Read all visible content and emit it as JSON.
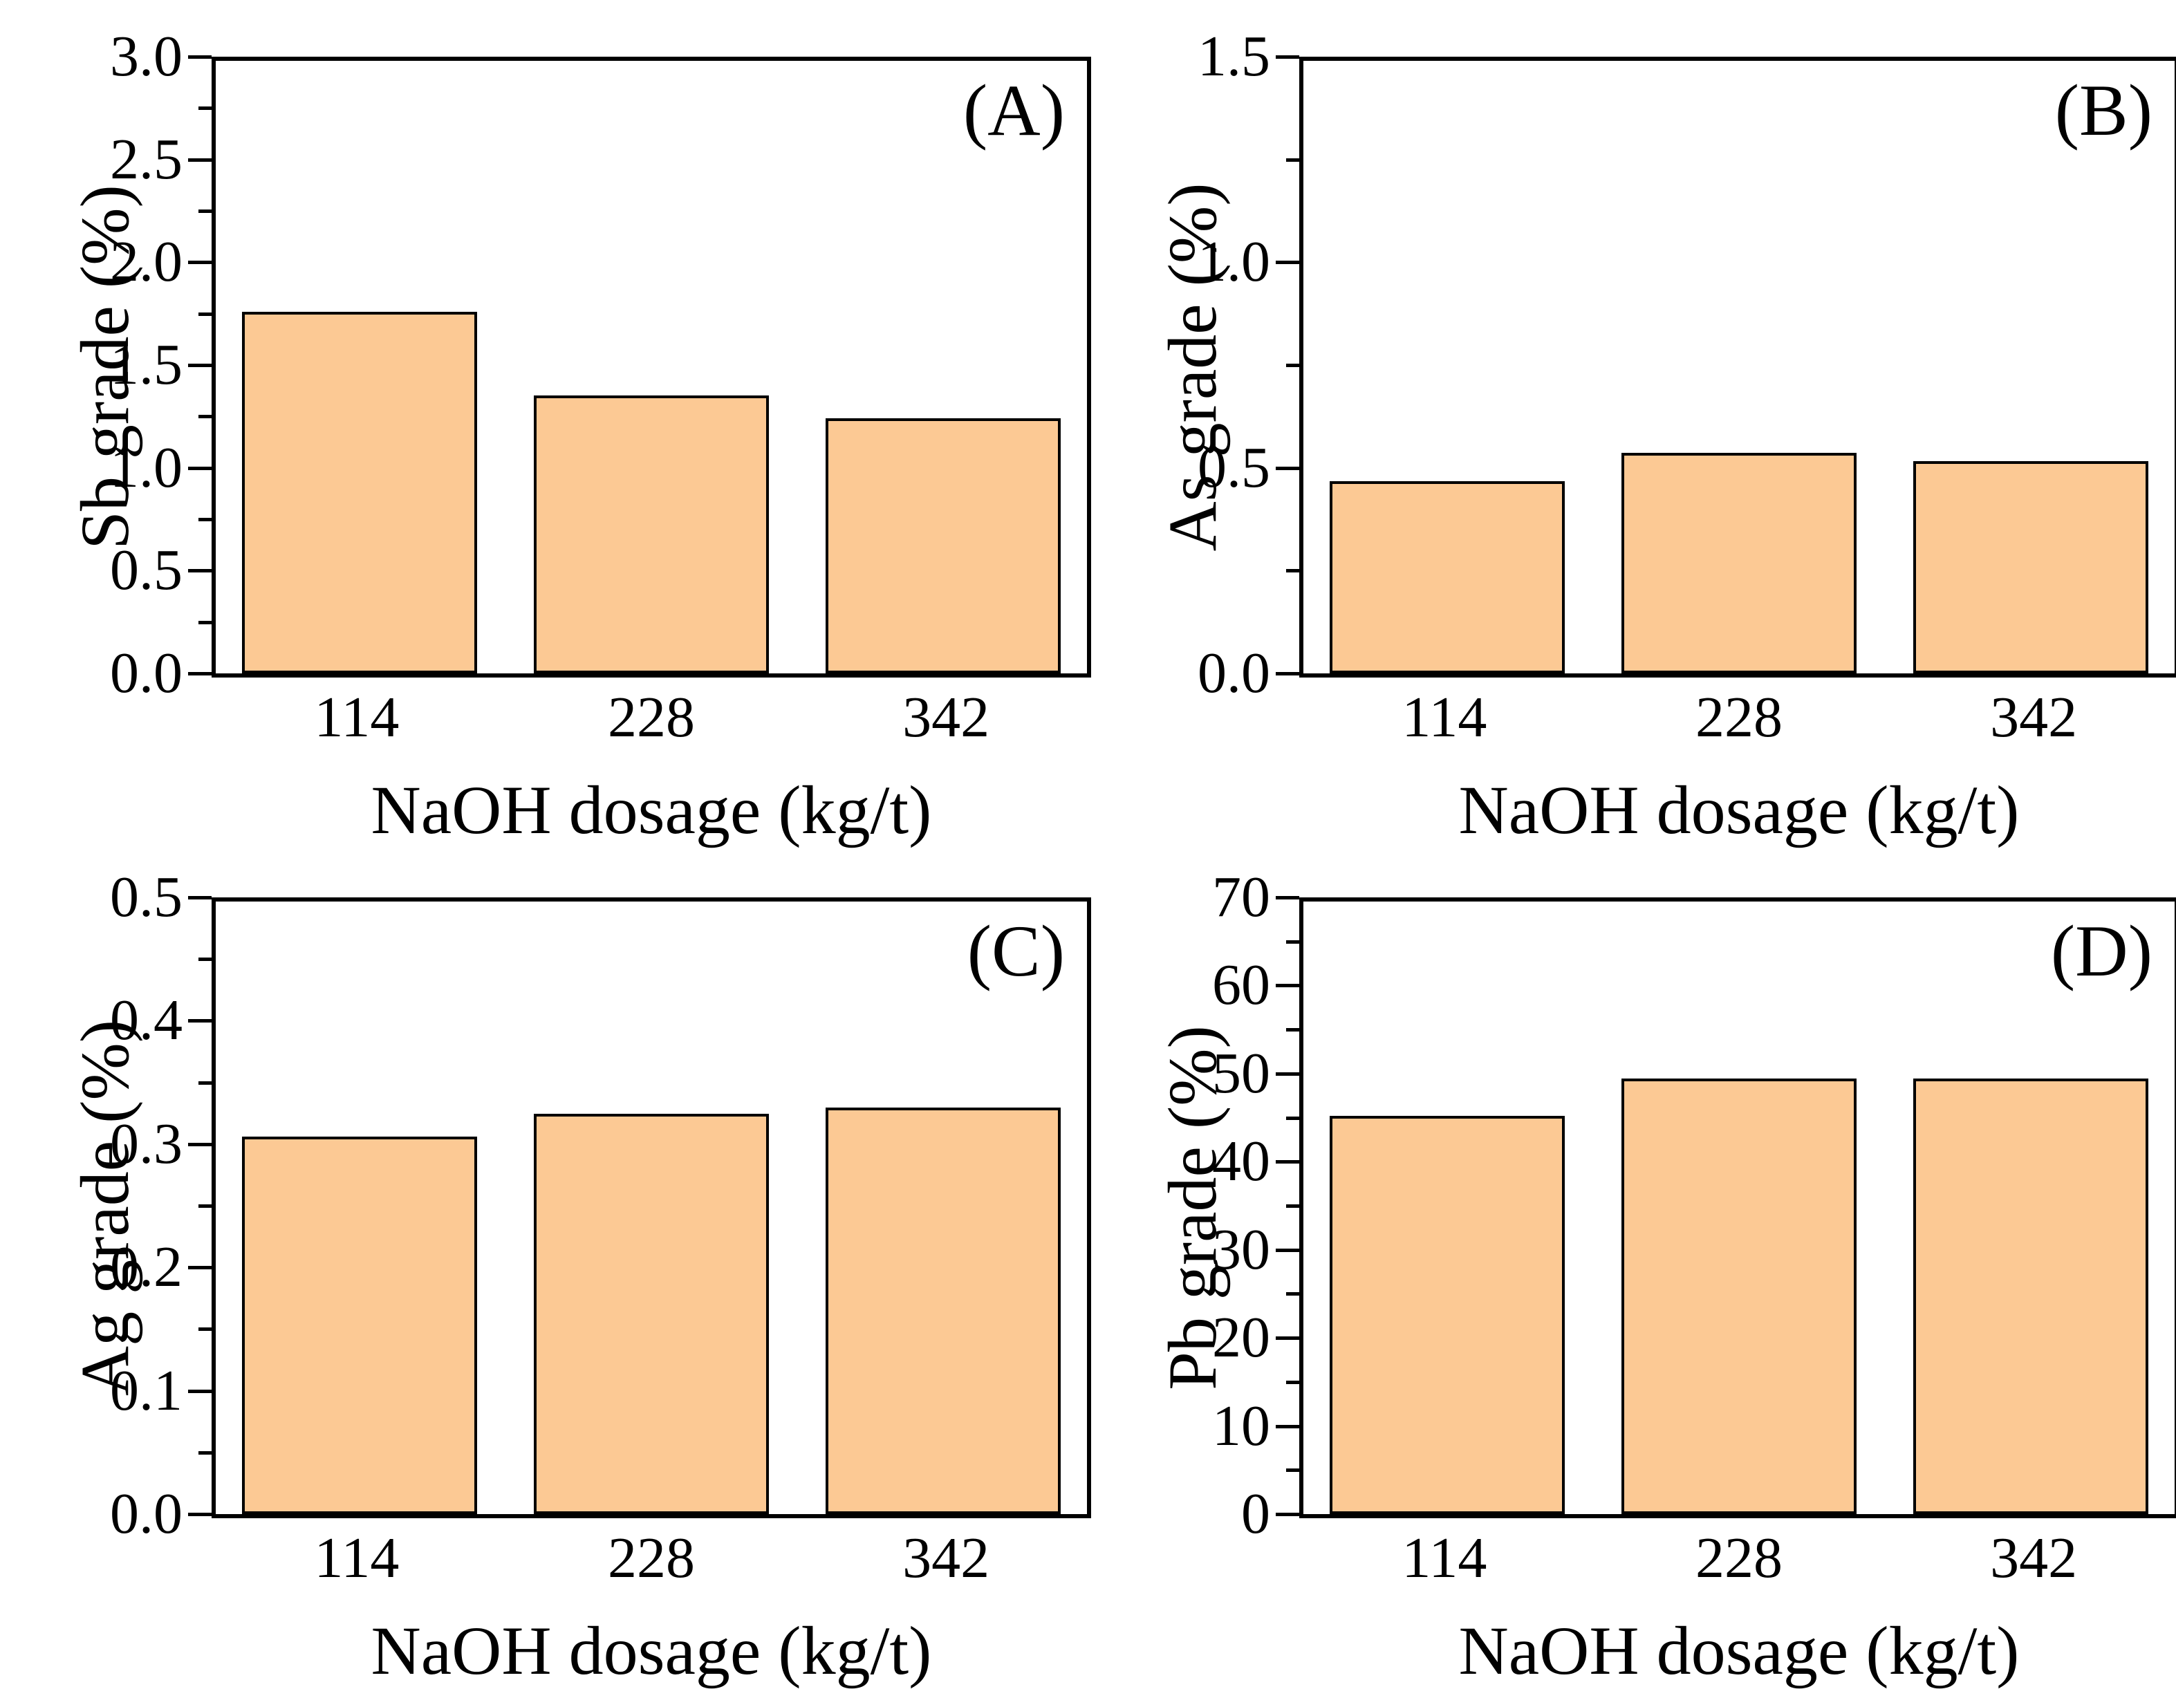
{
  "figure": {
    "background": "#ffffff",
    "bar_fill": "#FCC994",
    "bar_border": "#000000",
    "axis_color": "#000000"
  },
  "chart_data": [
    {
      "type": "bar",
      "panel_label": "(A)",
      "ylabel": "Sb grade (%)",
      "xlabel": "NaOH dosage (kg/t)",
      "categories": [
        "114",
        "228",
        "342"
      ],
      "values": [
        1.77,
        1.36,
        1.25
      ],
      "ylim": [
        0,
        3.0
      ],
      "ytick_labels": [
        "0.0",
        "0.5",
        "1.0",
        "1.5",
        "2.0",
        "2.5",
        "3.0"
      ],
      "minor_ticks_between_majors": 1,
      "grid": false,
      "legend": null
    },
    {
      "type": "bar",
      "panel_label": "(B)",
      "ylabel": "As grade (%)",
      "xlabel": "NaOH dosage (kg/t)",
      "categories": [
        "114",
        "228",
        "342"
      ],
      "values": [
        0.47,
        0.54,
        0.52
      ],
      "ylim": [
        0,
        1.5
      ],
      "ytick_labels": [
        "0.0",
        "0.5",
        "1.0",
        "1.5"
      ],
      "minor_ticks_between_majors": 1,
      "grid": false,
      "legend": null
    },
    {
      "type": "bar",
      "panel_label": "(C)",
      "ylabel": "Ag grade (%)",
      "xlabel": "NaOH dosage (kg/t)",
      "categories": [
        "114",
        "228",
        "342"
      ],
      "values": [
        0.308,
        0.327,
        0.332
      ],
      "ylim": [
        0,
        0.5
      ],
      "ytick_labels": [
        "0.0",
        "0.1",
        "0.2",
        "0.3",
        "0.4",
        "0.5"
      ],
      "minor_ticks_between_majors": 1,
      "grid": false,
      "legend": null
    },
    {
      "type": "bar",
      "panel_label": "(D)",
      "ylabel": "Pb grade (%)",
      "xlabel": "NaOH dosage (kg/t)",
      "categories": [
        "114",
        "228",
        "342"
      ],
      "values": [
        45.5,
        49.8,
        49.8
      ],
      "ylim": [
        0,
        70
      ],
      "ytick_labels": [
        "0",
        "10",
        "20",
        "30",
        "40",
        "50",
        "60",
        "70"
      ],
      "minor_ticks_between_majors": 1,
      "grid": false,
      "legend": null
    }
  ]
}
